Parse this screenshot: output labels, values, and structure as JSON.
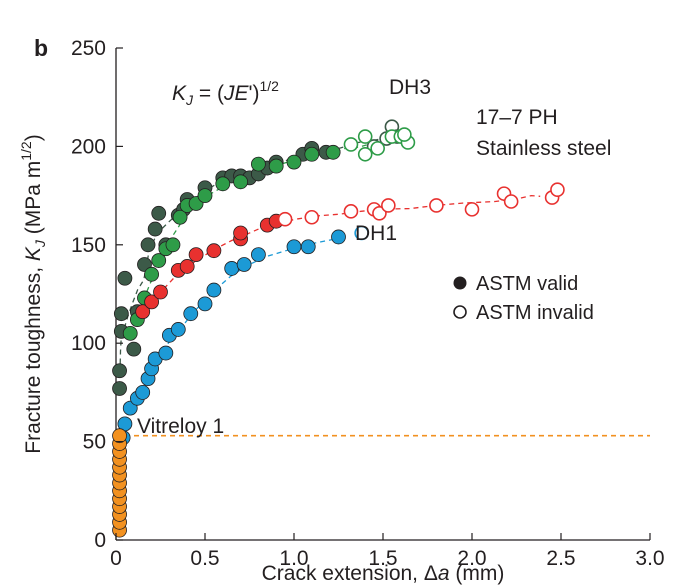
{
  "chart_data": {
    "type": "scatter",
    "panel_label": "b",
    "xlabel": "Crack extension, Δa (mm)",
    "ylabel": "Fracture toughness, K_J (MPa m^1/2)",
    "xlim": [
      0,
      3.0
    ],
    "ylim": [
      0,
      250
    ],
    "xticks": [
      "0",
      "0.5",
      "1.0",
      "1.5",
      "2.0",
      "2.5",
      "3.0"
    ],
    "yticks": [
      "0",
      "50",
      "100",
      "150",
      "200",
      "250"
    ],
    "grid": false,
    "formula": "K_J = (JE')^1/2",
    "annotations": [
      "DH3",
      "17–7 PH",
      "Stainless steel",
      "DH1",
      "Vitreloy 1"
    ],
    "legend": {
      "position": "right",
      "entries": [
        {
          "label": "ASTM valid",
          "marker": "filled"
        },
        {
          "label": "ASTM invalid",
          "marker": "open"
        }
      ]
    },
    "reference_line": {
      "y": 53,
      "style": "dashed",
      "color": "#f29120"
    },
    "series": [
      {
        "name": "DH3",
        "color": "#3c5a48",
        "valid": [
          [
            0.02,
            77
          ],
          [
            0.02,
            86
          ],
          [
            0.03,
            106
          ],
          [
            0.03,
            115
          ],
          [
            0.05,
            133
          ],
          [
            0.1,
            97
          ],
          [
            0.12,
            116
          ],
          [
            0.16,
            140
          ],
          [
            0.18,
            150
          ],
          [
            0.22,
            158
          ],
          [
            0.24,
            166
          ],
          [
            0.28,
            150
          ],
          [
            0.35,
            165
          ],
          [
            0.38,
            168
          ],
          [
            0.4,
            173
          ],
          [
            0.5,
            179
          ],
          [
            0.6,
            184
          ],
          [
            0.65,
            185
          ],
          [
            0.7,
            185
          ],
          [
            0.75,
            184
          ],
          [
            0.8,
            186
          ],
          [
            0.85,
            189
          ],
          [
            0.9,
            192
          ],
          [
            1.05,
            196
          ],
          [
            1.1,
            199
          ],
          [
            1.18,
            197
          ]
        ],
        "invalid": [
          [
            1.55,
            210
          ],
          [
            1.58,
            205
          ],
          [
            1.52,
            204
          ],
          [
            1.45,
            200
          ]
        ]
      },
      {
        "name": "DH3 (green)",
        "color": "#2e9c48",
        "valid": [
          [
            0.08,
            105
          ],
          [
            0.12,
            112
          ],
          [
            0.16,
            123
          ],
          [
            0.2,
            135
          ],
          [
            0.24,
            142
          ],
          [
            0.28,
            148
          ],
          [
            0.32,
            150
          ],
          [
            0.36,
            164
          ],
          [
            0.4,
            170
          ],
          [
            0.45,
            171
          ],
          [
            0.5,
            175
          ],
          [
            0.6,
            181
          ],
          [
            0.7,
            182
          ],
          [
            0.8,
            191
          ],
          [
            0.9,
            190
          ],
          [
            1.0,
            192
          ],
          [
            1.1,
            196
          ],
          [
            1.22,
            197
          ]
        ],
        "invalid": [
          [
            1.32,
            201
          ],
          [
            1.4,
            205
          ],
          [
            1.47,
            199
          ],
          [
            1.55,
            205
          ],
          [
            1.6,
            205
          ],
          [
            1.64,
            202
          ],
          [
            1.62,
            206
          ],
          [
            1.4,
            196
          ]
        ]
      },
      {
        "name": "17–7 PH Stainless steel",
        "color": "#e8312f",
        "valid": [
          [
            0.15,
            116
          ],
          [
            0.2,
            121
          ],
          [
            0.25,
            126
          ],
          [
            0.35,
            137
          ],
          [
            0.4,
            139
          ],
          [
            0.45,
            145
          ],
          [
            0.55,
            147
          ],
          [
            0.7,
            153
          ],
          [
            0.7,
            156
          ],
          [
            0.85,
            160
          ],
          [
            0.9,
            162
          ]
        ],
        "invalid": [
          [
            0.95,
            163
          ],
          [
            1.1,
            164
          ],
          [
            1.32,
            167
          ],
          [
            1.45,
            168
          ],
          [
            1.48,
            166
          ],
          [
            1.53,
            170
          ],
          [
            1.8,
            170
          ],
          [
            2.0,
            168
          ],
          [
            2.18,
            176
          ],
          [
            2.22,
            172
          ],
          [
            2.45,
            174
          ],
          [
            2.48,
            178
          ]
        ]
      },
      {
        "name": "DH1",
        "color": "#1c9ad6",
        "valid": [
          [
            0.04,
            52
          ],
          [
            0.05,
            59
          ],
          [
            0.08,
            67
          ],
          [
            0.12,
            72
          ],
          [
            0.15,
            75
          ],
          [
            0.18,
            82
          ],
          [
            0.2,
            87
          ],
          [
            0.22,
            92
          ],
          [
            0.28,
            95
          ],
          [
            0.3,
            104
          ],
          [
            0.35,
            107
          ],
          [
            0.42,
            115
          ],
          [
            0.5,
            120
          ],
          [
            0.55,
            127
          ],
          [
            0.65,
            138
          ],
          [
            0.72,
            140
          ],
          [
            0.8,
            145
          ],
          [
            1.0,
            149
          ],
          [
            1.08,
            149
          ],
          [
            1.25,
            154
          ]
        ],
        "invalid": [
          [
            1.38,
            156
          ]
        ]
      },
      {
        "name": "Vitreloy 1",
        "color": "#f29120",
        "valid": [
          [
            0.02,
            5
          ],
          [
            0.02,
            9
          ],
          [
            0.02,
            13
          ],
          [
            0.02,
            17
          ],
          [
            0.02,
            21
          ],
          [
            0.02,
            25
          ],
          [
            0.02,
            29
          ],
          [
            0.02,
            33
          ],
          [
            0.02,
            37
          ],
          [
            0.02,
            41
          ],
          [
            0.02,
            45
          ],
          [
            0.02,
            49
          ],
          [
            0.02,
            53
          ]
        ],
        "invalid": []
      }
    ]
  }
}
